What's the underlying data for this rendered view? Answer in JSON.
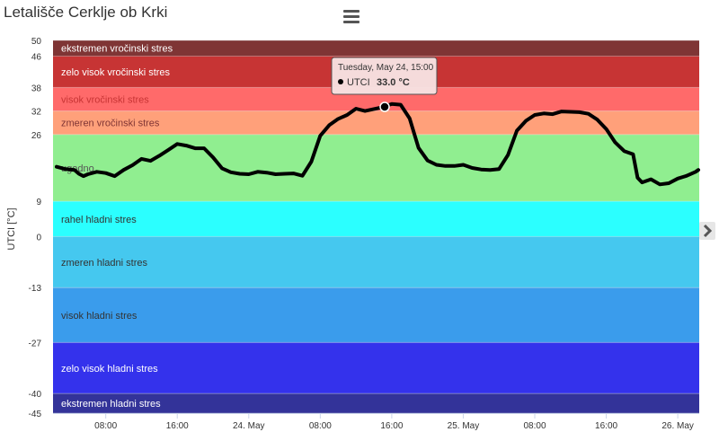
{
  "title": "Letališče Cerklje ob Krki",
  "menu": {
    "icon": "hamburger-menu-icon"
  },
  "nav": {
    "icon": "chevron-right-icon"
  },
  "tooltip": {
    "date": "Tuesday, May 24, 15:00",
    "series": "UTCI",
    "value": "33.0 °C"
  },
  "chart_data": {
    "type": "line",
    "ylabel": "UTCI [°C]",
    "ylim": [
      -45,
      50
    ],
    "yticks": [
      50,
      46,
      38,
      32,
      26,
      9,
      0,
      -13,
      -27,
      -40,
      -45
    ],
    "x_unit": "hours",
    "xlim": [
      2.1,
      74.4
    ],
    "xticks": [
      {
        "h": 8,
        "label": "08:00"
      },
      {
        "h": 16,
        "label": "16:00"
      },
      {
        "h": 24,
        "label": "24. May"
      },
      {
        "h": 32,
        "label": "08:00"
      },
      {
        "h": 40,
        "label": "16:00"
      },
      {
        "h": 48,
        "label": "25. May"
      },
      {
        "h": 56,
        "label": "08:00"
      },
      {
        "h": 64,
        "label": "16:00"
      },
      {
        "h": 72,
        "label": "26. May"
      }
    ],
    "bands": [
      {
        "from": 46,
        "to": 50,
        "label": "ekstremen vročinski stres",
        "color": "#7f3535",
        "text_color": "#ffffff"
      },
      {
        "from": 38,
        "to": 46,
        "label": "zelo visok vročinski stres",
        "color": "#c73434",
        "text_color": "#ffffff"
      },
      {
        "from": 32,
        "to": 38,
        "label": "visok vročinski stres",
        "color": "#ff6a6a",
        "text_color": "#c73434"
      },
      {
        "from": 26,
        "to": 32,
        "label": "zmeren vročinski stres",
        "color": "#ffa07a",
        "text_color": "#7f3535"
      },
      {
        "from": 9,
        "to": 26,
        "label": "ugodno",
        "color": "#90ee90",
        "text_color": "#555555"
      },
      {
        "from": 0,
        "to": 9,
        "label": "rahel hladni stres",
        "color": "#2bffff",
        "text_color": "#333333"
      },
      {
        "from": -13,
        "to": 0,
        "label": "zmeren hladni stres",
        "color": "#45c8ef",
        "text_color": "#333333"
      },
      {
        "from": -27,
        "to": -13,
        "label": "visok hladni stres",
        "color": "#3a9cec",
        "text_color": "#333333"
      },
      {
        "from": -40,
        "to": -27,
        "label": "zelo visok hladni stres",
        "color": "#3432ec",
        "text_color": "#ffffff"
      },
      {
        "from": -45,
        "to": -40,
        "label": "ekstremen hladni stres",
        "color": "#333399",
        "text_color": "#ffffff"
      }
    ],
    "series": [
      {
        "color": "#000000",
        "points": [
          [
            2.5,
            17.8
          ],
          [
            3.5,
            17.2
          ],
          [
            4.5,
            17.0
          ],
          [
            5.0,
            16.0
          ],
          [
            5.5,
            15.4
          ],
          [
            6.0,
            15.9
          ],
          [
            7.0,
            16.5
          ],
          [
            8.0,
            16.2
          ],
          [
            9.0,
            15.4
          ],
          [
            10.0,
            17.0
          ],
          [
            11.0,
            18.2
          ],
          [
            12.0,
            19.8
          ],
          [
            13.0,
            19.3
          ],
          [
            14.0,
            20.6
          ],
          [
            15.0,
            22.1
          ],
          [
            16.0,
            23.6
          ],
          [
            17.0,
            23.2
          ],
          [
            18.0,
            22.5
          ],
          [
            19.0,
            22.5
          ],
          [
            20.0,
            20.2
          ],
          [
            21.0,
            17.4
          ],
          [
            22.0,
            16.4
          ],
          [
            23.0,
            16.0
          ],
          [
            24.0,
            15.9
          ],
          [
            25.0,
            16.5
          ],
          [
            26.0,
            16.3
          ],
          [
            27.0,
            15.9
          ],
          [
            28.0,
            16.0
          ],
          [
            29.0,
            16.1
          ],
          [
            30.0,
            15.5
          ],
          [
            31.0,
            19.1
          ],
          [
            32.0,
            25.7
          ],
          [
            33.0,
            28.4
          ],
          [
            34.0,
            30.0
          ],
          [
            35.0,
            31.0
          ],
          [
            36.0,
            32.6
          ],
          [
            37.0,
            32.0
          ],
          [
            38.0,
            32.5
          ],
          [
            39.0,
            33.0
          ],
          [
            40.0,
            33.8
          ],
          [
            41.0,
            33.6
          ],
          [
            42.0,
            30.1
          ],
          [
            43.0,
            22.6
          ],
          [
            44.0,
            19.4
          ],
          [
            45.0,
            18.3
          ],
          [
            46.0,
            18.0
          ],
          [
            47.0,
            18.0
          ],
          [
            48.0,
            18.3
          ],
          [
            49.0,
            17.5
          ],
          [
            50.0,
            17.1
          ],
          [
            51.0,
            17.0
          ],
          [
            52.0,
            17.2
          ],
          [
            53.0,
            20.8
          ],
          [
            54.0,
            27.0
          ],
          [
            55.0,
            29.5
          ],
          [
            56.0,
            31.0
          ],
          [
            57.0,
            31.4
          ],
          [
            58.0,
            31.2
          ],
          [
            59.0,
            31.9
          ],
          [
            60.0,
            31.8
          ],
          [
            61.0,
            31.7
          ],
          [
            62.0,
            31.3
          ],
          [
            63.0,
            29.8
          ],
          [
            64.0,
            27.4
          ],
          [
            65.0,
            24.0
          ],
          [
            66.0,
            21.8
          ],
          [
            67.0,
            21.0
          ],
          [
            67.5,
            15.0
          ],
          [
            68.0,
            13.8
          ],
          [
            69.0,
            14.6
          ],
          [
            70.0,
            13.3
          ],
          [
            71.0,
            13.6
          ],
          [
            72.0,
            14.8
          ],
          [
            73.0,
            15.5
          ],
          [
            74.0,
            16.5
          ],
          [
            74.3,
            17.0
          ]
        ]
      }
    ]
  }
}
